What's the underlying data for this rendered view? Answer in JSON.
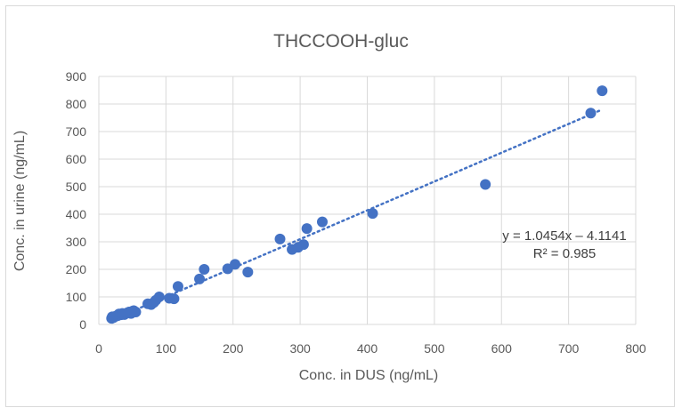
{
  "chart_data": {
    "type": "scatter",
    "title": "THCCOOH-gluc",
    "xlabel": "Conc. in DUS (ng/mL)",
    "ylabel": "Conc. in urine (ng/mL)",
    "xlim": [
      0,
      800
    ],
    "ylim": [
      0,
      900
    ],
    "x_ticks": [
      "0",
      "100",
      "200",
      "300",
      "400",
      "500",
      "600",
      "700",
      "800"
    ],
    "y_ticks": [
      "0",
      "100",
      "200",
      "300",
      "400",
      "500",
      "600",
      "700",
      "800",
      "900"
    ],
    "grid": true,
    "series_color": "#4472c4",
    "trendline": {
      "slope": 1.0454,
      "intercept": -4.1141,
      "style": "dotted"
    },
    "equation_label": "y = 1.0454x – 4.1141",
    "r2_label": "R² = 0.985",
    "points": [
      [
        19,
        22
      ],
      [
        20,
        28
      ],
      [
        22,
        25
      ],
      [
        25,
        30
      ],
      [
        28,
        32
      ],
      [
        30,
        38
      ],
      [
        33,
        35
      ],
      [
        35,
        40
      ],
      [
        38,
        36
      ],
      [
        42,
        42
      ],
      [
        45,
        45
      ],
      [
        48,
        40
      ],
      [
        50,
        48
      ],
      [
        52,
        50
      ],
      [
        55,
        45
      ],
      [
        73,
        75
      ],
      [
        78,
        72
      ],
      [
        82,
        80
      ],
      [
        85,
        88
      ],
      [
        90,
        100
      ],
      [
        105,
        95
      ],
      [
        112,
        93
      ],
      [
        118,
        138
      ],
      [
        150,
        165
      ],
      [
        157,
        200
      ],
      [
        192,
        202
      ],
      [
        203,
        218
      ],
      [
        222,
        190
      ],
      [
        270,
        310
      ],
      [
        288,
        272
      ],
      [
        297,
        280
      ],
      [
        305,
        290
      ],
      [
        310,
        348
      ],
      [
        333,
        372
      ],
      [
        408,
        403
      ],
      [
        576,
        508
      ],
      [
        733,
        767
      ],
      [
        750,
        848
      ]
    ]
  }
}
